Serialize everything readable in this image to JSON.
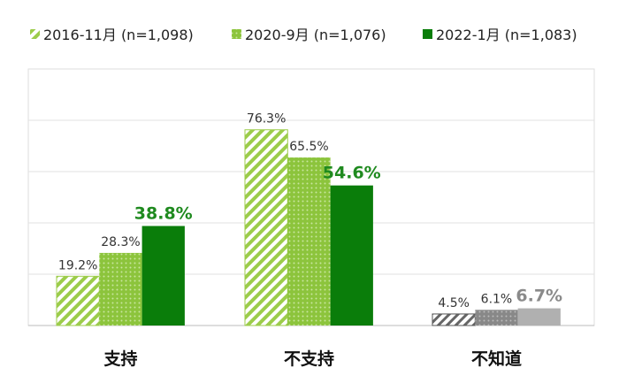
{
  "chart_data": {
    "type": "bar",
    "categories": [
      "支持",
      "不支持",
      "不知道"
    ],
    "series": [
      {
        "name": "2016-11月 (n=1,098)",
        "values": [
          19.2,
          76.3,
          4.5
        ],
        "labels": [
          "19.2%",
          "76.3%",
          "4.5%"
        ],
        "pattern": "hatch"
      },
      {
        "name": "2020-9月 (n=1,076)",
        "values": [
          28.3,
          65.5,
          6.1
        ],
        "labels": [
          "28.3%",
          "65.5%",
          "6.1%"
        ],
        "pattern": "dots"
      },
      {
        "name": "2022-1月 (n=1,083)",
        "values": [
          38.8,
          54.6,
          6.7
        ],
        "labels": [
          "38.8%",
          "54.6%",
          "6.7%"
        ],
        "pattern": "solid"
      }
    ],
    "ylim": [
      0,
      100
    ],
    "grid": true,
    "legend": "top",
    "colors": {
      "light": "#9ccc4a",
      "dark": "#0a7d0a",
      "grey": "#b0b0b0",
      "greyDark": "#7a7a7a",
      "highlight_label": "#1f8a1f"
    }
  }
}
